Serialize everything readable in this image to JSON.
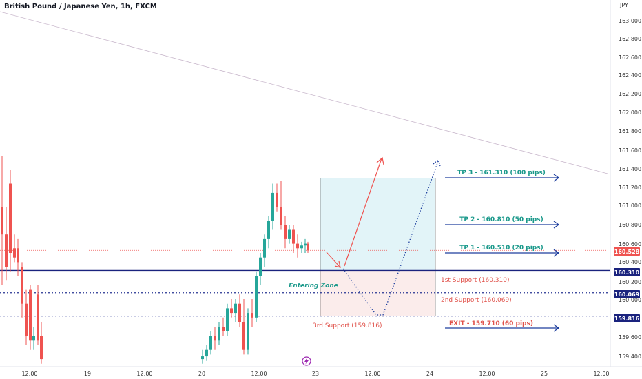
{
  "header": {
    "title": "British Pound / Japanese Yen, 1h, FXCM",
    "currency": "JPY"
  },
  "colors": {
    "up": "#26a69a",
    "down": "#ef5350",
    "trend_blue": "#1a237e",
    "support_blue": "#283593",
    "tp_text": "#1b998b",
    "support_text": "#e0514a",
    "arrow_blue": "#1e3f9e",
    "zone_top": "#e2f4f8",
    "zone_bottom": "#fbeceb",
    "price_tag": "#ef5350",
    "label_tag": "#1a237e"
  },
  "chart_data": {
    "type": "candlestick",
    "y_axis": {
      "ticks": [
        "163.000",
        "162.800",
        "162.600",
        "162.400",
        "162.200",
        "162.000",
        "161.800",
        "161.600",
        "161.400",
        "161.200",
        "161.000",
        "160.800",
        "160.600",
        "160.400",
        "160.200",
        "160.000",
        "159.600",
        "159.400"
      ],
      "ylim": [
        159.3,
        163.1
      ]
    },
    "x_axis": {
      "ticks": [
        "12:00",
        "19",
        "12:00",
        "20",
        "12:00",
        "23",
        "12:00",
        "24",
        "12:00",
        "25",
        "12:00"
      ]
    },
    "price_tags": [
      {
        "label": "160.528",
        "value": 160.528,
        "kind": "current"
      },
      {
        "label": "160.310",
        "value": 160.31,
        "kind": "level"
      },
      {
        "label": "160.069",
        "value": 160.069,
        "kind": "level"
      },
      {
        "label": "159.816",
        "value": 159.816,
        "kind": "level"
      }
    ],
    "levels": [
      {
        "value": 160.31,
        "style": "solid"
      },
      {
        "value": 160.069,
        "style": "dotted"
      },
      {
        "value": 159.816,
        "style": "dotted"
      },
      {
        "value": 160.528,
        "style": "dotted-red"
      }
    ],
    "candles": [
      {
        "o": 161.0,
        "h": 161.55,
        "l": 160.15,
        "c": 160.7
      },
      {
        "o": 160.7,
        "h": 161.0,
        "l": 160.2,
        "c": 160.35
      },
      {
        "o": 161.25,
        "h": 161.4,
        "l": 160.3,
        "c": 160.5
      },
      {
        "o": 160.55,
        "h": 160.7,
        "l": 160.4,
        "c": 160.45
      },
      {
        "o": 160.55,
        "h": 160.65,
        "l": 160.25,
        "c": 160.4
      },
      {
        "o": 160.35,
        "h": 160.4,
        "l": 159.8,
        "c": 159.95
      },
      {
        "o": 159.95,
        "h": 160.1,
        "l": 159.5,
        "c": 159.6
      },
      {
        "o": 160.1,
        "h": 160.15,
        "l": 159.45,
        "c": 159.55
      },
      {
        "o": 159.55,
        "h": 159.7,
        "l": 159.45,
        "c": 159.6
      },
      {
        "o": 160.05,
        "h": 160.15,
        "l": 159.5,
        "c": 159.55
      },
      {
        "o": 159.6,
        "h": 159.75,
        "l": 159.3,
        "c": 159.35
      },
      {
        "o": 159.35,
        "h": 159.45,
        "l": 159.3,
        "c": 159.38
      },
      {
        "o": 159.38,
        "h": 159.5,
        "l": 159.33,
        "c": 159.45
      },
      {
        "o": 159.45,
        "h": 159.65,
        "l": 159.4,
        "c": 159.6
      },
      {
        "o": 159.6,
        "h": 159.7,
        "l": 159.45,
        "c": 159.55
      },
      {
        "o": 159.55,
        "h": 159.75,
        "l": 159.5,
        "c": 159.7
      },
      {
        "o": 159.7,
        "h": 159.8,
        "l": 159.6,
        "c": 159.65
      },
      {
        "o": 159.65,
        "h": 159.95,
        "l": 159.6,
        "c": 159.9
      },
      {
        "o": 159.9,
        "h": 160.0,
        "l": 159.8,
        "c": 159.85
      },
      {
        "o": 159.85,
        "h": 160.0,
        "l": 159.75,
        "c": 159.95
      },
      {
        "o": 159.95,
        "h": 160.05,
        "l": 159.7,
        "c": 159.75
      },
      {
        "o": 159.75,
        "h": 160.0,
        "l": 159.4,
        "c": 159.45
      },
      {
        "o": 159.45,
        "h": 159.9,
        "l": 159.4,
        "c": 159.85
      },
      {
        "o": 159.85,
        "h": 160.0,
        "l": 159.7,
        "c": 159.8
      },
      {
        "o": 159.8,
        "h": 160.3,
        "l": 159.75,
        "c": 160.25
      },
      {
        "o": 160.25,
        "h": 160.5,
        "l": 160.15,
        "c": 160.45
      },
      {
        "o": 160.45,
        "h": 160.7,
        "l": 160.35,
        "c": 160.65
      },
      {
        "o": 160.65,
        "h": 160.9,
        "l": 160.55,
        "c": 160.85
      },
      {
        "o": 160.85,
        "h": 161.25,
        "l": 160.75,
        "c": 161.15
      },
      {
        "o": 161.15,
        "h": 161.25,
        "l": 160.95,
        "c": 161.0
      },
      {
        "o": 161.0,
        "h": 161.28,
        "l": 160.75,
        "c": 160.8
      },
      {
        "o": 160.8,
        "h": 160.9,
        "l": 160.55,
        "c": 160.65
      },
      {
        "o": 160.65,
        "h": 160.8,
        "l": 160.6,
        "c": 160.75
      },
      {
        "o": 160.75,
        "h": 160.8,
        "l": 160.5,
        "c": 160.6
      },
      {
        "o": 160.6,
        "h": 160.7,
        "l": 160.45,
        "c": 160.55
      },
      {
        "o": 160.55,
        "h": 160.62,
        "l": 160.5,
        "c": 160.58
      },
      {
        "o": 160.58,
        "h": 160.65,
        "l": 160.5,
        "c": 160.6
      },
      {
        "o": 160.6,
        "h": 160.62,
        "l": 160.5,
        "c": 160.528
      }
    ],
    "annotations": {
      "tp3": "TP 3 - 161.310 (100 pips)",
      "tp2": "TP 2 - 160.810 (50 pips)",
      "tp1": "TP 1 - 160.510 (20 pips)",
      "support1": "1st Support (160.310)",
      "support2": "2nd Support (160.069)",
      "support3": "3rd Support (159.816)",
      "exit": "EXIT - 159.710 (60 pips)",
      "entering_zone": "Entering Zone"
    },
    "zone": {
      "top": 161.31,
      "mid": 160.31,
      "bottom": 159.816
    },
    "trend_line": {
      "from": 163.1,
      "to": 161.38
    }
  }
}
